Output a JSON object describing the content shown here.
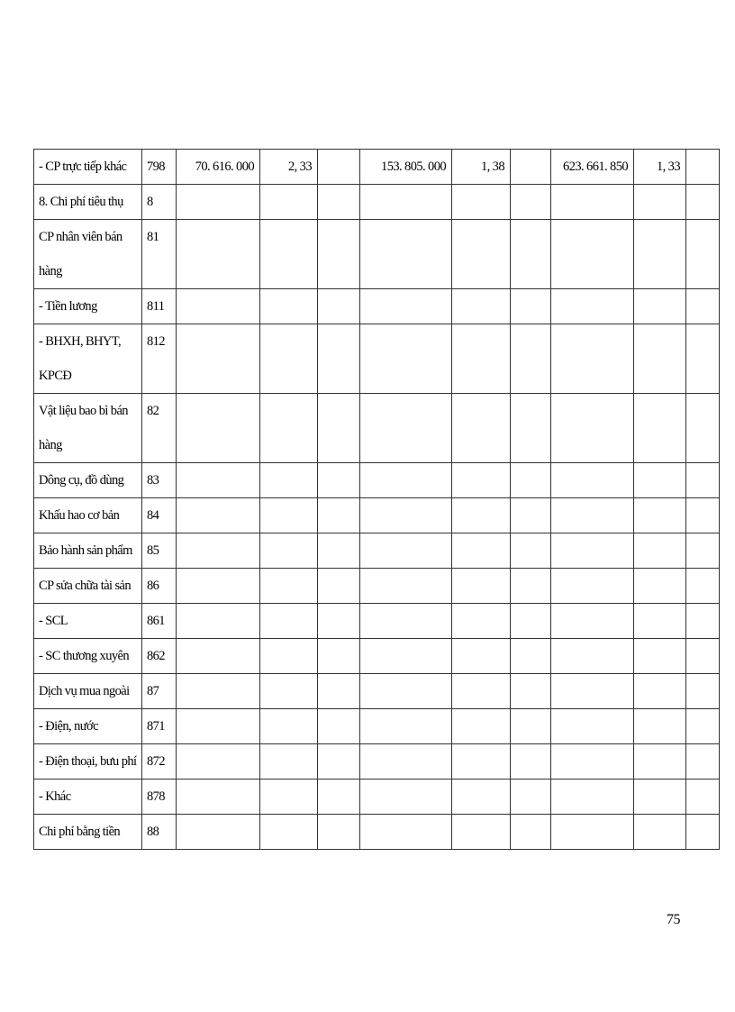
{
  "table": {
    "rows": [
      {
        "cells": [
          "- CP trực tiếp khác",
          "798",
          "70. 616. 000",
          "2, 33",
          "",
          "153. 805. 000",
          "1, 38",
          "",
          "623. 661. 850",
          "1, 33",
          ""
        ]
      },
      {
        "cells": [
          "8. Chi phí tiêu thụ",
          "8",
          "",
          "",
          "",
          "",
          "",
          "",
          "",
          "",
          ""
        ]
      },
      {
        "cells": [
          "CP nhân viên bán hàng",
          "81",
          "",
          "",
          "",
          "",
          "",
          "",
          "",
          "",
          ""
        ]
      },
      {
        "cells": [
          "- Tiền lương",
          "811",
          "",
          "",
          "",
          "",
          "",
          "",
          "",
          "",
          ""
        ]
      },
      {
        "cells": [
          "- BHXH, BHYT, KPCĐ",
          "812",
          "",
          "",
          "",
          "",
          "",
          "",
          "",
          "",
          ""
        ]
      },
      {
        "cells": [
          "Vật liệu bao bì bán hàng",
          "82",
          "",
          "",
          "",
          "",
          "",
          "",
          "",
          "",
          ""
        ]
      },
      {
        "cells": [
          "Dông cụ, đồ dùng",
          "83",
          "",
          "",
          "",
          "",
          "",
          "",
          "",
          "",
          ""
        ]
      },
      {
        "cells": [
          "Khấu hao cơ bản",
          "84",
          "",
          "",
          "",
          "",
          "",
          "",
          "",
          "",
          ""
        ]
      },
      {
        "cells": [
          "Bảo hành sản phẩm",
          "85",
          "",
          "",
          "",
          "",
          "",
          "",
          "",
          "",
          ""
        ]
      },
      {
        "cells": [
          "CP sửa chữa tài sản",
          "86",
          "",
          "",
          "",
          "",
          "",
          "",
          "",
          "",
          ""
        ]
      },
      {
        "cells": [
          " - SCL",
          "861",
          "",
          "",
          "",
          "",
          "",
          "",
          "",
          "",
          ""
        ]
      },
      {
        "cells": [
          "- SC thương xuyên",
          "862",
          "",
          "",
          "",
          "",
          "",
          "",
          "",
          "",
          ""
        ]
      },
      {
        "cells": [
          "Dịch vụ mua ngoài",
          "87",
          "",
          "",
          "",
          "",
          "",
          "",
          "",
          "",
          ""
        ]
      },
      {
        "cells": [
          "- Điện, nước",
          "871",
          "",
          "",
          "",
          "",
          "",
          "",
          "",
          "",
          ""
        ]
      },
      {
        "cells": [
          "- Điện thoại, bưu phí",
          "872",
          "",
          "",
          "",
          "",
          "",
          "",
          "",
          "",
          ""
        ]
      },
      {
        "cells": [
          "- Khác",
          "878",
          "",
          "",
          "",
          "",
          "",
          "",
          "",
          "",
          ""
        ]
      },
      {
        "cells": [
          "Chi phí bằng tiền",
          "88",
          "",
          "",
          "",
          "",
          "",
          "",
          "",
          "",
          ""
        ]
      }
    ]
  },
  "page_number": "75"
}
